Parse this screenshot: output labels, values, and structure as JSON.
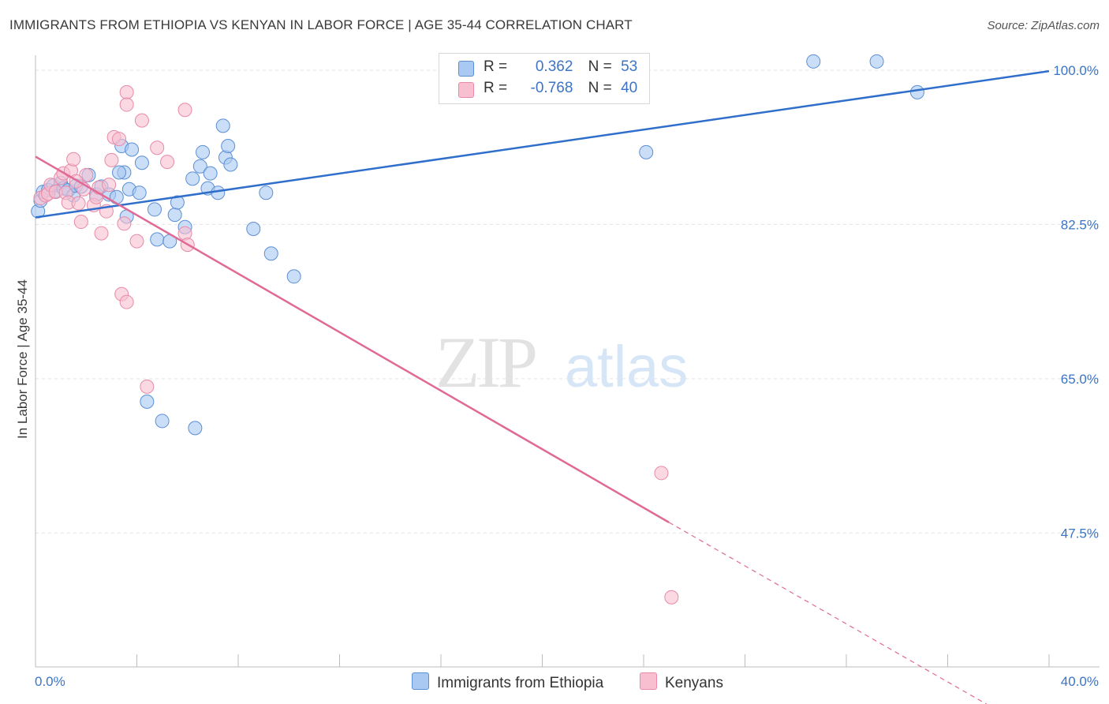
{
  "header": {
    "title": "IMMIGRANTS FROM ETHIOPIA VS KENYAN IN LABOR FORCE | AGE 35-44 CORRELATION CHART",
    "source": "Source: ZipAtlas.com"
  },
  "watermark": {
    "zip": "ZIP",
    "atlas": "atlas"
  },
  "legend": {
    "rows": [
      {
        "r_label": "R =",
        "r_value": "0.362",
        "n_label": "N =",
        "n_value": "53"
      },
      {
        "r_label": "R =",
        "r_value": "-0.768",
        "n_label": "N =",
        "n_value": "40"
      }
    ]
  },
  "bottom_legend": [
    "Immigrants from Ethiopia",
    "Kenyans"
  ],
  "colors": {
    "ethiopia_fill": "#a9c8f2",
    "ethiopia_stroke": "#5b8fd6",
    "ethiopia_line": "#2f6fcb",
    "kenyan_fill": "#f7bfd0",
    "kenyan_stroke": "#e88aa8",
    "kenyan_line": "#e06a95",
    "tick_text": "#3b74c7",
    "grid": "#e3e3e3"
  },
  "chart_data": {
    "type": "scatter",
    "title": "IMMIGRANTS FROM ETHIOPIA VS KENYAN IN LABOR FORCE | AGE 35-44 CORRELATION CHART",
    "xlabel": "",
    "ylabel": "In Labor Force | Age 35-44",
    "xlim": [
      0,
      40
    ],
    "ylim": [
      32.3,
      101.7
    ],
    "x_tick_labels": [
      "0.0%",
      "40.0%"
    ],
    "y_ticks": [
      47.5,
      65.0,
      82.5,
      100.0
    ],
    "y_tick_labels": [
      "47.5%",
      "65.0%",
      "82.5%",
      "100.0%"
    ],
    "grid": true,
    "legend_position": "top-center",
    "series": [
      {
        "name": "Immigrants from Ethiopia",
        "r": 0.362,
        "n": 53,
        "trend": {
          "x": [
            0,
            40
          ],
          "y": [
            83.3,
            99.9
          ]
        },
        "points": [
          [
            0.1,
            84.0
          ],
          [
            0.2,
            85.2
          ],
          [
            0.3,
            86.2
          ],
          [
            0.5,
            86.4
          ],
          [
            0.7,
            86.9
          ],
          [
            0.8,
            86.3
          ],
          [
            1.0,
            87.2
          ],
          [
            1.1,
            86.6
          ],
          [
            1.3,
            86.4
          ],
          [
            1.5,
            85.8
          ],
          [
            1.6,
            86.9
          ],
          [
            1.8,
            86.8
          ],
          [
            2.1,
            88.1
          ],
          [
            2.4,
            85.9
          ],
          [
            2.6,
            86.8
          ],
          [
            2.9,
            85.9
          ],
          [
            3.2,
            85.6
          ],
          [
            3.5,
            88.4
          ],
          [
            3.3,
            88.4
          ],
          [
            3.4,
            91.4
          ],
          [
            3.8,
            91.0
          ],
          [
            3.6,
            83.4
          ],
          [
            3.7,
            86.5
          ],
          [
            4.1,
            86.1
          ],
          [
            4.2,
            89.5
          ],
          [
            4.7,
            84.2
          ],
          [
            4.8,
            80.8
          ],
          [
            5.3,
            80.6
          ],
          [
            5.5,
            83.6
          ],
          [
            5.6,
            85.0
          ],
          [
            5.9,
            82.2
          ],
          [
            6.2,
            87.7
          ],
          [
            6.5,
            89.1
          ],
          [
            6.6,
            90.7
          ],
          [
            6.8,
            86.6
          ],
          [
            6.9,
            88.3
          ],
          [
            7.2,
            86.1
          ],
          [
            7.4,
            93.7
          ],
          [
            7.5,
            90.1
          ],
          [
            7.6,
            91.4
          ],
          [
            7.7,
            89.3
          ],
          [
            8.6,
            82.0
          ],
          [
            9.1,
            86.1
          ],
          [
            9.3,
            79.2
          ],
          [
            10.2,
            76.6
          ],
          [
            4.4,
            62.4
          ],
          [
            5.0,
            60.2
          ],
          [
            6.3,
            59.4
          ],
          [
            17.0,
            100.8
          ],
          [
            24.1,
            90.7
          ],
          [
            30.7,
            101.0
          ],
          [
            33.2,
            101.0
          ],
          [
            34.8,
            97.5
          ]
        ]
      },
      {
        "name": "Kenyans",
        "r": -0.768,
        "n": 40,
        "trend": {
          "x": [
            0,
            25.0
          ],
          "y": [
            90.2,
            48.7
          ]
        },
        "trend_dashed": {
          "x": [
            25.0,
            37.7
          ],
          "y": [
            48.7,
            27.8
          ]
        },
        "points": [
          [
            0.2,
            85.5
          ],
          [
            0.4,
            85.8
          ],
          [
            0.5,
            86.0
          ],
          [
            0.6,
            87.0
          ],
          [
            0.8,
            86.2
          ],
          [
            1.0,
            87.8
          ],
          [
            1.1,
            88.3
          ],
          [
            1.2,
            86.1
          ],
          [
            1.3,
            85.0
          ],
          [
            1.4,
            88.6
          ],
          [
            1.5,
            89.9
          ],
          [
            1.7,
            84.9
          ],
          [
            1.8,
            82.8
          ],
          [
            1.9,
            86.5
          ],
          [
            2.0,
            88.1
          ],
          [
            2.3,
            84.7
          ],
          [
            2.4,
            85.6
          ],
          [
            2.5,
            86.7
          ],
          [
            2.6,
            81.5
          ],
          [
            2.8,
            84.0
          ],
          [
            2.9,
            87.0
          ],
          [
            3.0,
            89.8
          ],
          [
            3.1,
            92.4
          ],
          [
            3.3,
            92.2
          ],
          [
            3.4,
            74.6
          ],
          [
            3.5,
            82.6
          ],
          [
            3.6,
            73.7
          ],
          [
            3.6,
            97.5
          ],
          [
            3.6,
            96.1
          ],
          [
            4.0,
            80.6
          ],
          [
            4.2,
            94.3
          ],
          [
            4.4,
            64.1
          ],
          [
            4.8,
            91.2
          ],
          [
            5.2,
            89.6
          ],
          [
            5.9,
            81.5
          ],
          [
            5.9,
            95.5
          ],
          [
            6.0,
            80.2
          ],
          [
            24.7,
            54.3
          ],
          [
            25.1,
            40.2
          ],
          [
            1.6,
            87.4
          ]
        ]
      }
    ]
  }
}
